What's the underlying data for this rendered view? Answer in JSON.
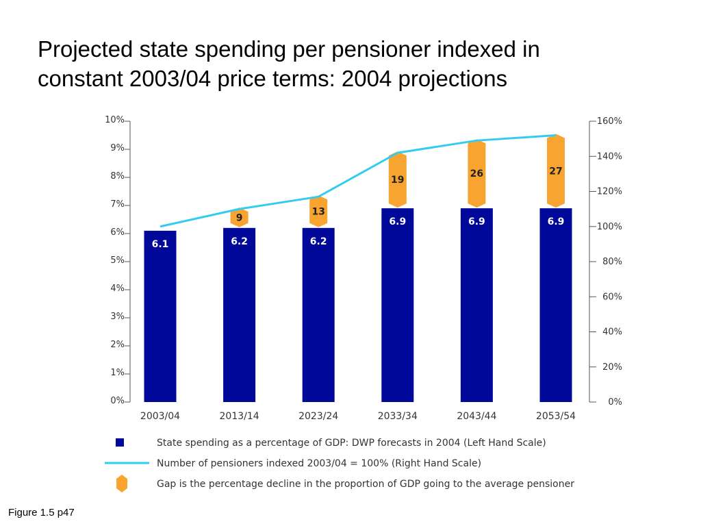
{
  "slide": {
    "title_line1": "Projected state spending per pensioner indexed in",
    "title_line2": "constant 2003/04 price terms: 2004 projections",
    "caption": "Figure 1.5 p47"
  },
  "colors": {
    "bar": "#00099a",
    "line": "#33ccee",
    "gap": "#f7a530",
    "axis": "#555555"
  },
  "chart_data": {
    "type": "bar",
    "categories": [
      "2003/04",
      "2013/14",
      "2023/24",
      "2033/34",
      "2043/44",
      "2053/54"
    ],
    "series": [
      {
        "name": "State spending as a percentage of GDP: DWP forecasts in 2004 (Left Hand Scale)",
        "type": "bar",
        "axis": "left",
        "values": [
          6.1,
          6.2,
          6.2,
          6.9,
          6.9,
          6.9
        ],
        "labels": [
          "6.1",
          "6.2",
          "6.2",
          "6.9",
          "6.9",
          "6.9"
        ]
      },
      {
        "name": "Number of pensioners indexed 2003/04 = 100% (Right Hand Scale)",
        "type": "line",
        "axis": "right",
        "values": [
          100,
          110,
          117,
          142,
          149,
          152
        ]
      },
      {
        "name": "Gap is the percentage decline in the proportion of GDP going to the average pensioner",
        "type": "gap-marker",
        "values": [
          null,
          9,
          13,
          19,
          26,
          27
        ],
        "labels": [
          "",
          "9",
          "13",
          "19",
          "26",
          "27"
        ]
      }
    ],
    "y_left": {
      "range": [
        0,
        10
      ],
      "ticks": [
        "0%",
        "1%",
        "2%",
        "3%",
        "4%",
        "5%",
        "6%",
        "7%",
        "8%",
        "9%",
        "10%"
      ]
    },
    "y_right": {
      "range": [
        0,
        160
      ],
      "ticks": [
        "0%",
        "20%",
        "40%",
        "60%",
        "80%",
        "100%",
        "120%",
        "140%",
        "160%"
      ]
    },
    "legend": [
      {
        "type": "bar",
        "label": "State spending as a percentage of GDP: DWP forecasts in 2004 (Left Hand Scale)"
      },
      {
        "type": "line",
        "label": "Number of pensioners indexed 2003/04 = 100% (Right Hand Scale)"
      },
      {
        "type": "gap",
        "label": "Gap is the percentage decline in the proportion of GDP going to the average pensioner"
      }
    ],
    "legend_position": "bottom",
    "grid": false
  }
}
